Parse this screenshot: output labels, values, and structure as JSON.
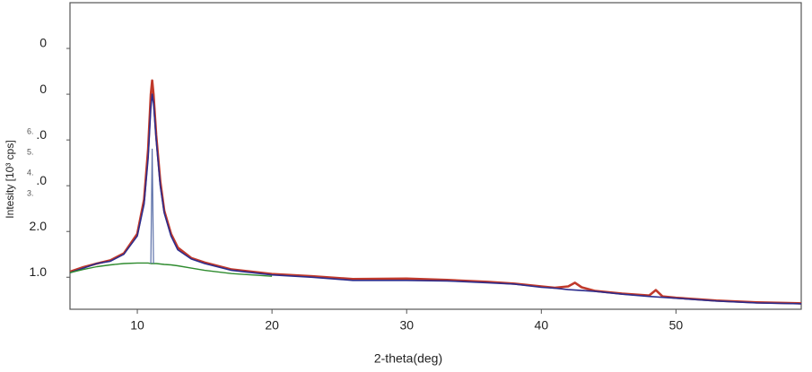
{
  "chart_data": {
    "type": "line",
    "x_label": "2-theta(deg)",
    "y_label": "Intesity [10³ cps]",
    "side_labels": [
      "6.",
      "5.",
      "4.",
      "3."
    ],
    "x": [
      5,
      6,
      7,
      8,
      9,
      10,
      10.5,
      10.8,
      11,
      11.1,
      11.2,
      11.4,
      11.7,
      12,
      12.5,
      13,
      14,
      15,
      17,
      20,
      23,
      26,
      30,
      33,
      36,
      38,
      40,
      41,
      42,
      42.5,
      43,
      44,
      46,
      48,
      48.5,
      49,
      50,
      53,
      56,
      59.3
    ],
    "series": [
      {
        "color": "#c0392b",
        "width": 2.6,
        "values": [
          1.12,
          1.22,
          1.3,
          1.37,
          1.52,
          1.95,
          2.7,
          3.8,
          5.0,
          5.3,
          5.0,
          4.1,
          3.1,
          2.45,
          1.95,
          1.65,
          1.42,
          1.32,
          1.17,
          1.07,
          1.02,
          0.96,
          0.97,
          0.94,
          0.9,
          0.86,
          0.8,
          0.77,
          0.8,
          0.88,
          0.78,
          0.7,
          0.64,
          0.6,
          0.72,
          0.58,
          0.55,
          0.49,
          0.45,
          0.43
        ]
      },
      {
        "color": "#2c2c8c",
        "width": 1.6,
        "values": [
          1.1,
          1.2,
          1.3,
          1.35,
          1.5,
          1.9,
          2.6,
          3.6,
          4.7,
          5.0,
          4.8,
          4.0,
          3.0,
          2.4,
          1.9,
          1.6,
          1.4,
          1.3,
          1.15,
          1.05,
          1.0,
          0.93,
          0.93,
          0.92,
          0.88,
          0.85,
          0.78,
          0.76,
          0.73,
          0.72,
          0.71,
          0.69,
          0.63,
          0.58,
          0.57,
          0.56,
          0.54,
          0.48,
          0.44,
          0.42
        ]
      },
      {
        "color": "#2e8b2e",
        "width": 1.4,
        "values": [
          1.1,
          1.17,
          1.23,
          1.27,
          1.3,
          1.31,
          1.31,
          1.31,
          1.3,
          1.3,
          1.3,
          1.3,
          1.29,
          1.28,
          1.27,
          1.25,
          1.2,
          1.15,
          1.08,
          1.02,
          null,
          null,
          null,
          null,
          null,
          null,
          null,
          null,
          null,
          null,
          null,
          null,
          null,
          null,
          null,
          null,
          null,
          null,
          null,
          null
        ]
      },
      {
        "color": "#5a6fa8",
        "width": 1.2,
        "values": [
          null,
          null,
          null,
          null,
          null,
          null,
          null,
          null,
          1.3,
          3.8,
          1.3,
          null,
          null,
          null,
          null,
          null,
          null,
          null,
          null,
          null,
          null,
          null,
          null,
          null,
          null,
          null,
          null,
          null,
          null,
          null,
          null,
          null,
          null,
          null,
          null,
          null,
          null,
          null,
          null,
          null
        ]
      }
    ],
    "xlim": [
      5,
      59.3
    ],
    "ylim": [
      0.3,
      7.0
    ],
    "xticks": [
      10,
      20,
      30,
      40,
      50
    ],
    "yticks": [
      {
        "value": 6,
        "label": "0"
      },
      {
        "value": 5,
        "label": "0"
      },
      {
        "value": 4,
        "label": ".0"
      },
      {
        "value": 3,
        "label": ".0"
      },
      {
        "value": 2,
        "label": "2.0"
      },
      {
        "value": 1,
        "label": "1.0"
      }
    ]
  }
}
